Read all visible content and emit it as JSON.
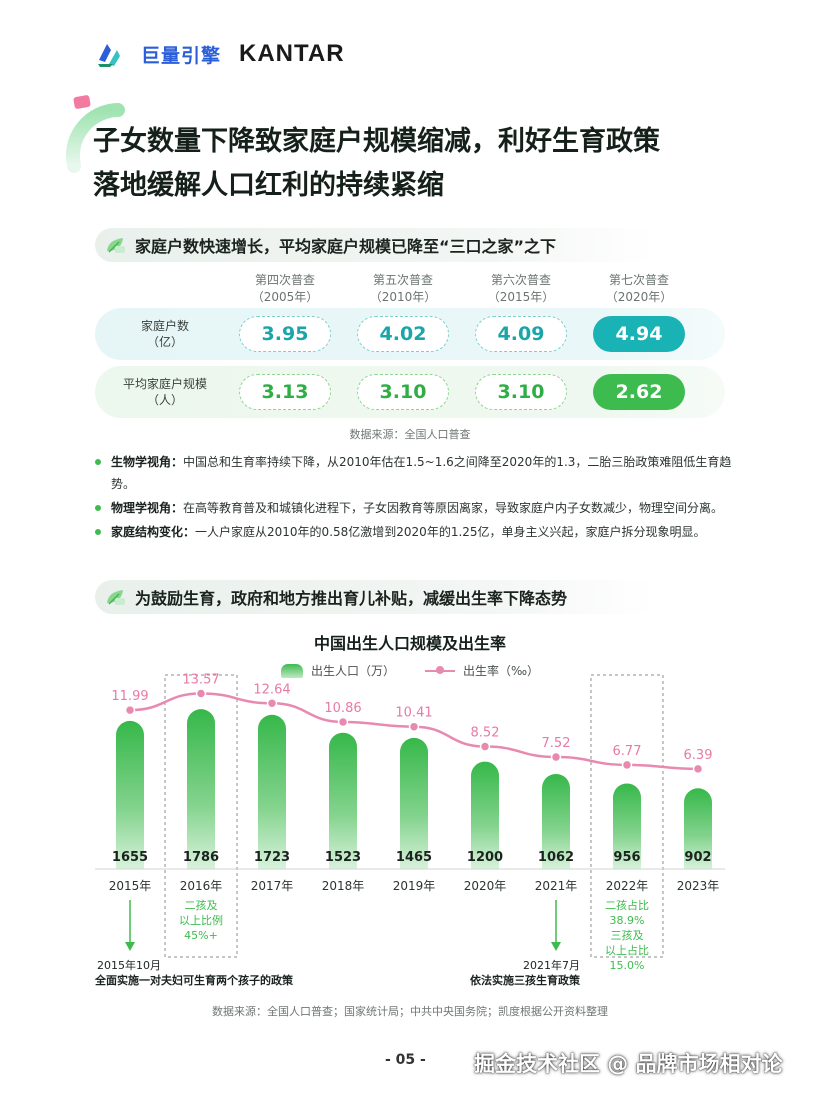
{
  "brand": {
    "cn_logo": "巨量引擎",
    "kantar": "KANTAR"
  },
  "title": {
    "line1": "子女数量下降致家庭户规模缩减，利好生育政策",
    "line2": "落地缓解人口红利的持续紧缩"
  },
  "section1": {
    "heading": "家庭户数快速增长，平均家庭户规模已降至“三口之家”之下",
    "columns": [
      {
        "name": "第四次普查",
        "year": "（2005年）"
      },
      {
        "name": "第五次普查",
        "year": "（2010年）"
      },
      {
        "name": "第六次普查",
        "year": "（2015年）"
      },
      {
        "name": "第七次普查",
        "year": "（2020年）"
      }
    ],
    "rows": [
      {
        "label1": "家庭户数",
        "label2": "（亿）",
        "values": [
          "3.95",
          "4.02",
          "4.09",
          "4.94"
        ]
      },
      {
        "label1": "平均家庭户规模",
        "label2": "（人）",
        "values": [
          "3.13",
          "3.10",
          "3.10",
          "2.62"
        ]
      }
    ],
    "source": "数据来源：全国人口普查"
  },
  "bullets": [
    {
      "term": "生物学视角：",
      "text": "中国总和生育率持续下降，从2010年估在1.5~1.6之间降至2020年的1.3，二胎三胎政策难阻低生育趋势。"
    },
    {
      "term": "物理学视角：",
      "text": "在高等教育普及和城镇化进程下，子女因教育等原因离家，导致家庭户内子女数减少，物理空间分离。"
    },
    {
      "term": "家庭结构变化：",
      "text": "一人户家庭从2010年的0.58亿激增到2020年的1.25亿，单身主义兴起，家庭户拆分现象明显。"
    }
  ],
  "section2": {
    "heading": "为鼓励生育，政府和地方推出育儿补贴，减缓出生率下降态势"
  },
  "chart_data": {
    "type": "bar",
    "title": "中国出生人口规模及出生率",
    "categories": [
      "2015年",
      "2016年",
      "2017年",
      "2018年",
      "2019年",
      "2020年",
      "2021年",
      "2022年",
      "2023年"
    ],
    "series": [
      {
        "name": "出生人口（万）",
        "type": "bar",
        "values": [
          1655,
          1786,
          1723,
          1523,
          1465,
          1200,
          1062,
          956,
          902
        ]
      },
      {
        "name": "出生率（‰）",
        "type": "line",
        "values": [
          11.99,
          13.57,
          12.64,
          10.86,
          10.41,
          8.52,
          7.52,
          6.77,
          6.39
        ]
      }
    ],
    "legend": "top-center",
    "colors": {
      "bar": "#3dbb4e",
      "line": "#e88ab0"
    },
    "notes": {
      "n2016": [
        "二孩及",
        "以上比例",
        "45%+"
      ],
      "n2022": [
        "二孩占比",
        "38.9%",
        "三孩及",
        "以上占比",
        "15.0%"
      ]
    },
    "policies": {
      "p2015_date": "2015年10月",
      "p2015_text": "全面实施一对夫妇可生育两个孩子的政策",
      "p2021_date": "2021年7月",
      "p2021_text": "依法实施三孩生育政策"
    },
    "source": "数据来源：全国人口普查；国家统计局；中共中央国务院；凯度根据公开资料整理"
  },
  "page_number": "- 05 -",
  "watermark": "掘金技术社区 @ 品牌市场相对论"
}
